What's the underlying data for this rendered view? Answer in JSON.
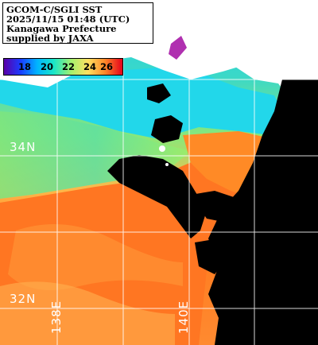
{
  "title_lines": [
    "GCOM-C/SGLI SST",
    "2025/11/15 01:48 (UTC)",
    "Kanagawa Prefecture",
    "supplied by JAXA"
  ],
  "legend": {
    "ticks": [
      "18",
      "20",
      "22",
      "24",
      "26"
    ],
    "colors": [
      "#5a00a8",
      "#1a3cff",
      "#00b4ff",
      "#19e6c8",
      "#a6f06e",
      "#ffe060",
      "#ff8a2a",
      "#e5001a"
    ]
  },
  "grid_labels": {
    "lat_34": "34N",
    "lat_32": "32N",
    "lon_138": "138E",
    "lon_140": "140E"
  },
  "colors": {
    "land": "#ffffff",
    "no_data": "#000000",
    "grid": "#ffffff",
    "cool_water": "#2ad4d4",
    "warm_water": "#ff7a1a"
  }
}
